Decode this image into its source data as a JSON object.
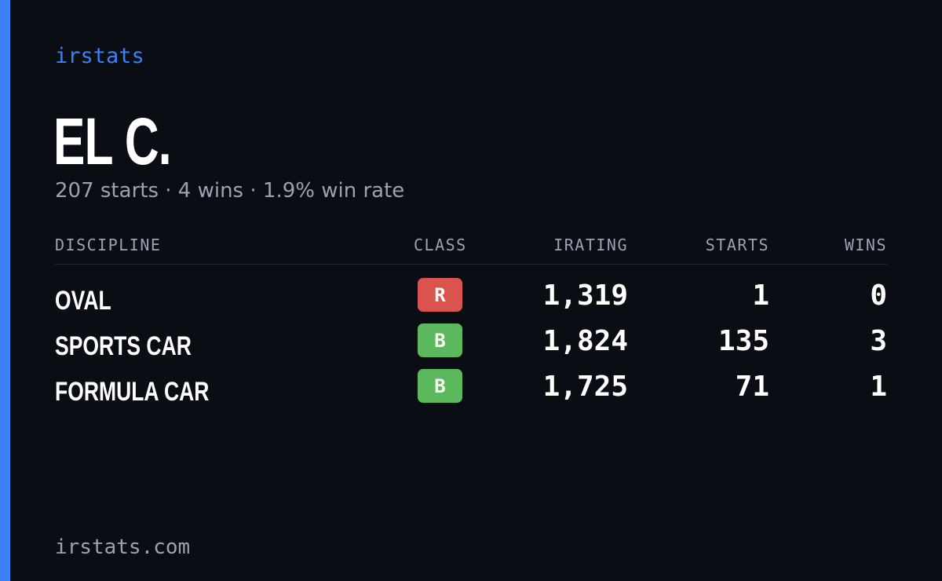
{
  "brand": "irstats",
  "driver": {
    "name": "EL C.",
    "summary": "207 starts · 4 wins · 1.9% win rate"
  },
  "table": {
    "headers": {
      "discipline": "DISCIPLINE",
      "class": "CLASS",
      "irating": "IRATING",
      "starts": "STARTS",
      "wins": "WINS"
    },
    "rows": [
      {
        "discipline": "OVAL",
        "class": "R",
        "class_color": "#d9534f",
        "irating": "1,319",
        "starts": "1",
        "wins": "0"
      },
      {
        "discipline": "SPORTS CAR",
        "class": "B",
        "class_color": "#5cb85c",
        "irating": "1,824",
        "starts": "135",
        "wins": "3"
      },
      {
        "discipline": "FORMULA CAR",
        "class": "B",
        "class_color": "#5cb85c",
        "irating": "1,725",
        "starts": "71",
        "wins": "1"
      }
    ]
  },
  "footer": "irstats.com",
  "colors": {
    "accent": "#3b82f6",
    "background": "#0a0d14",
    "muted_text": "#9aa3b2"
  }
}
